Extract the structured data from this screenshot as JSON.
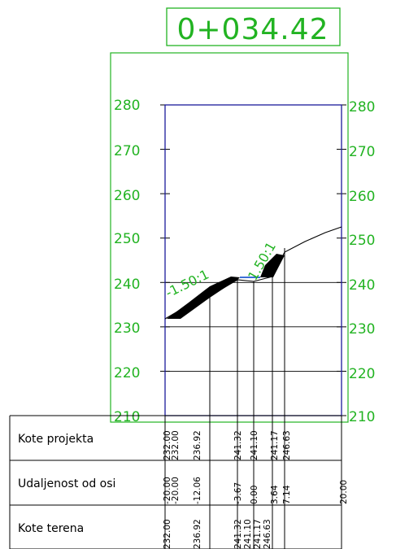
{
  "station_label": "0+034.42",
  "elevation_ticks": [
    "210",
    "220",
    "230",
    "240",
    "250",
    "260",
    "270",
    "280"
  ],
  "slope_labels": [
    "-1.50:1",
    "1.50:1"
  ],
  "table": {
    "rows": [
      "Kote projekta",
      "Udaljenost od osi",
      "Kote terena"
    ]
  },
  "columns": [
    {
      "projekta": "232.00",
      "udaljenost": "-20.00",
      "terena": "232.00"
    },
    {
      "projekta": "232.00",
      "udaljenost": "-20.00",
      "terena": ""
    },
    {
      "projekta": "236.92",
      "udaljenost": "-12.06",
      "terena": "236.92"
    },
    {
      "projekta": "241.32",
      "udaljenost": "-3.67",
      "terena": "241.32"
    },
    {
      "projekta": "241.10",
      "udaljenost": "0.00",
      "terena": "241.10"
    },
    {
      "projekta": "241.17",
      "udaljenost": "3.64",
      "terena": "241.17"
    },
    {
      "projekta": "246.63",
      "udaljenost": "7.14",
      "terena": "246.63"
    },
    {
      "projekta": "",
      "udaljenost": "20.00",
      "terena": ""
    }
  ],
  "colors": {
    "frame": "#22b322",
    "axis": "#1a1a9c",
    "lines": "#000000",
    "accent": "#3b6fd6"
  }
}
